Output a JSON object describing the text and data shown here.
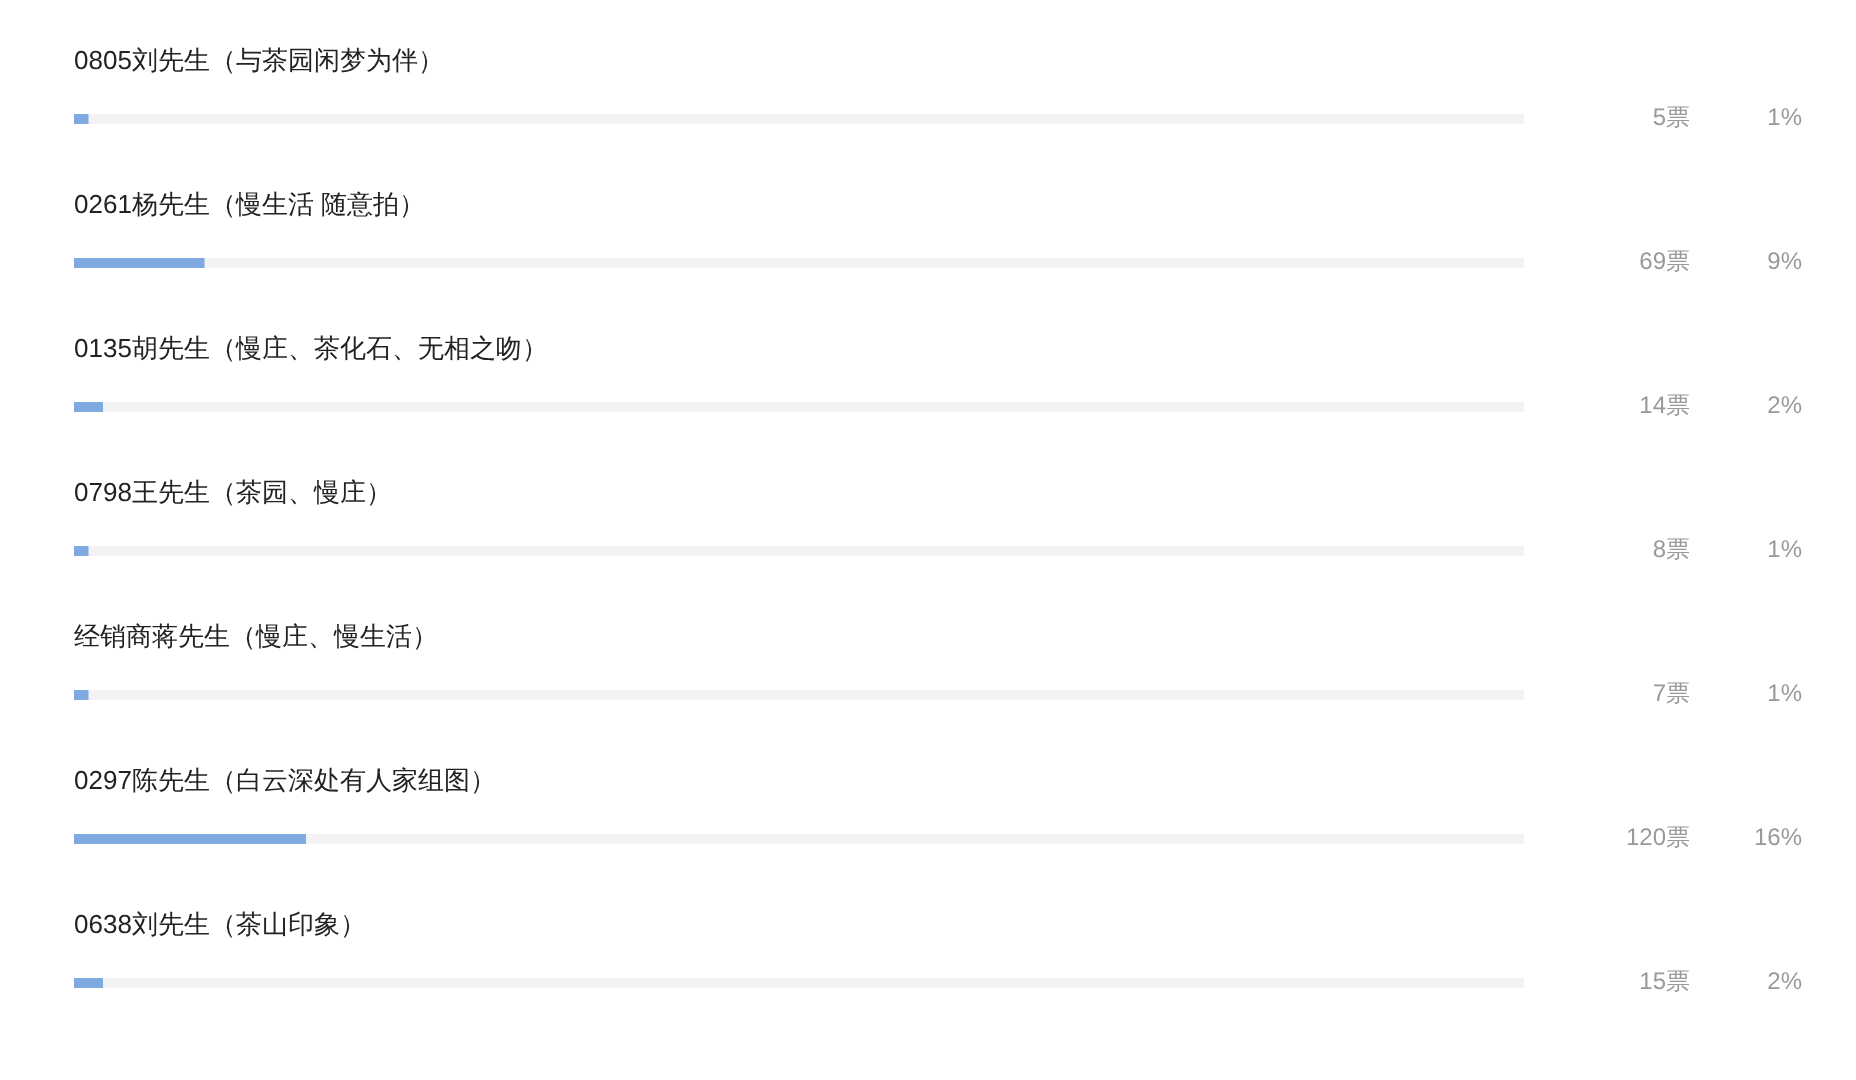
{
  "chart_data": {
    "type": "bar",
    "orientation": "horizontal",
    "categories": [
      "0805刘先生（与茶园闲梦为伴）",
      "0261杨先生（慢生活 随意拍）",
      "0135胡先生（慢庄、茶化石、无相之吻）",
      "0798王先生（茶园、慢庄）",
      "经销商蒋先生（慢庄、慢生活）",
      "0297陈先生（白云深处有人家组图）",
      "0638刘先生（茶山印象）"
    ],
    "values": [
      1,
      9,
      2,
      1,
      1,
      16,
      2
    ],
    "color": "#7eaae0",
    "value_labels": [
      "1%",
      "9%",
      "2%",
      "1%",
      "1%",
      "16%",
      "2%"
    ],
    "annotations": [
      "5票",
      "69票",
      "14票",
      "8票",
      "7票",
      "120票",
      "15票"
    ],
    "xlim": [
      0,
      100
    ],
    "tick_labels": "y"
  }
}
